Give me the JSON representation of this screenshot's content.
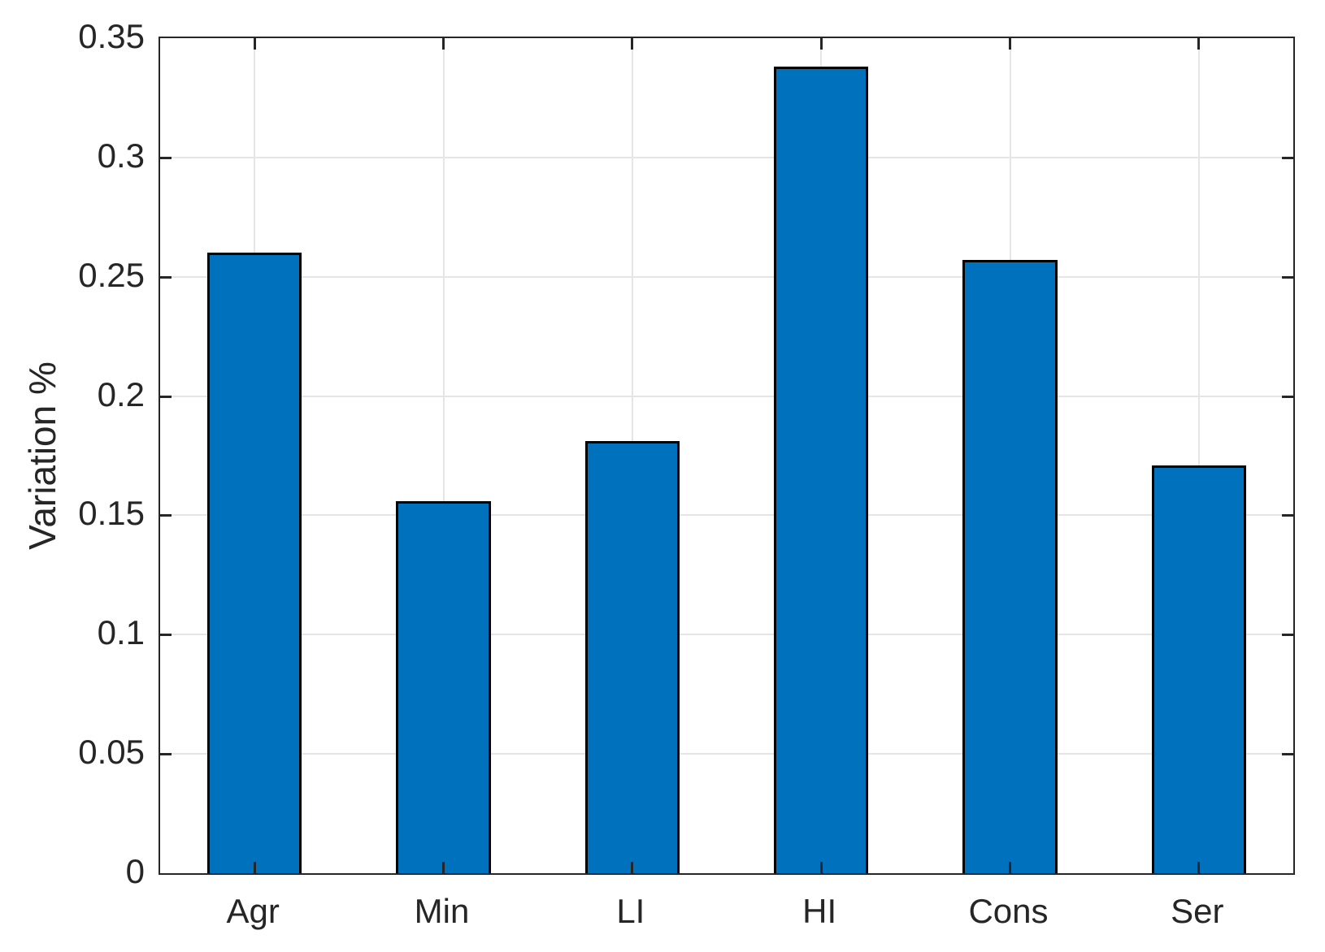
{
  "figure": {
    "background": "#ffffff"
  },
  "chart_data": {
    "type": "bar",
    "categories": [
      "Agr",
      "Min",
      "LI",
      "HI",
      "Cons",
      "Ser"
    ],
    "values": [
      0.26,
      0.156,
      0.181,
      0.338,
      0.257,
      0.171
    ],
    "title": "",
    "xlabel": "",
    "ylabel": "Variation %",
    "ylim": [
      0,
      0.35
    ],
    "yticks": [
      0,
      0.05,
      0.1,
      0.15,
      0.2,
      0.25,
      0.3,
      0.35
    ],
    "ytick_labels": [
      "0",
      "0.05",
      "0.1",
      "0.15",
      "0.2",
      "0.25",
      "0.3",
      "0.35"
    ],
    "grid": true,
    "legend_position": "none",
    "bar_color": "#0072BD",
    "bar_edge_color": "#000000",
    "axis_color": "#262626",
    "grid_color": "#e5e5e5",
    "tick_label_color": "#262626",
    "bar_width_fraction": 0.5
  }
}
